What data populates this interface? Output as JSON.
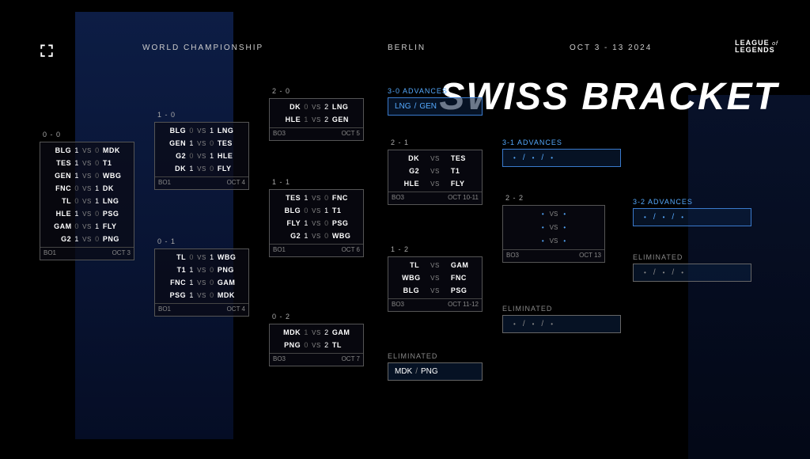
{
  "header": {
    "title": "WORLD CHAMPIONSHIP",
    "loc": "BERLIN",
    "date": "OCT 3 - 13 2024",
    "lol1": "LEAGUE",
    "lol2": "LEGENDS",
    "lolof": "of"
  },
  "main_title": "SWISS BRACKET",
  "c1": {
    "hdr": "0 - 0",
    "ft1": "BO1",
    "ft2": "OCT 3",
    "m": [
      {
        "t1": "BLG",
        "s1": "1",
        "t2": "MDK",
        "s2": "0"
      },
      {
        "t1": "TES",
        "s1": "1",
        "t2": "T1",
        "s2": "0"
      },
      {
        "t1": "GEN",
        "s1": "1",
        "t2": "WBG",
        "s2": "0"
      },
      {
        "t1": "FNC",
        "s1": "0",
        "t2": "DK",
        "s2": "1"
      },
      {
        "t1": "TL",
        "s1": "0",
        "t2": "LNG",
        "s2": "1"
      },
      {
        "t1": "HLE",
        "s1": "1",
        "t2": "PSG",
        "s2": "0"
      },
      {
        "t1": "GAM",
        "s1": "0",
        "t2": "FLY",
        "s2": "1"
      },
      {
        "t1": "G2",
        "s1": "1",
        "t2": "PNG",
        "s2": "0"
      }
    ]
  },
  "c2a": {
    "hdr": "1 - 0",
    "ft1": "BO1",
    "ft2": "OCT 4",
    "m": [
      {
        "t1": "BLG",
        "s1": "0",
        "t2": "LNG",
        "s2": "1"
      },
      {
        "t1": "GEN",
        "s1": "1",
        "t2": "TES",
        "s2": "0"
      },
      {
        "t1": "G2",
        "s1": "0",
        "t2": "HLE",
        "s2": "1"
      },
      {
        "t1": "DK",
        "s1": "1",
        "t2": "FLY",
        "s2": "0"
      }
    ]
  },
  "c2b": {
    "hdr": "0 - 1",
    "ft1": "BO1",
    "ft2": "OCT 4",
    "m": [
      {
        "t1": "TL",
        "s1": "0",
        "t2": "WBG",
        "s2": "1"
      },
      {
        "t1": "T1",
        "s1": "1",
        "t2": "PNG",
        "s2": "0"
      },
      {
        "t1": "FNC",
        "s1": "1",
        "t2": "GAM",
        "s2": "0"
      },
      {
        "t1": "PSG",
        "s1": "1",
        "t2": "MDK",
        "s2": "0"
      }
    ]
  },
  "c3a": {
    "hdr": "2 - 0",
    "ft1": "BO3",
    "ft2": "OCT 5",
    "m": [
      {
        "t1": "DK",
        "s1": "0",
        "t2": "LNG",
        "s2": "2"
      },
      {
        "t1": "HLE",
        "s1": "1",
        "t2": "GEN",
        "s2": "2"
      }
    ]
  },
  "c3b": {
    "hdr": "1 - 1",
    "ft1": "BO1",
    "ft2": "OCT 6",
    "m": [
      {
        "t1": "TES",
        "s1": "1",
        "t2": "FNC",
        "s2": "0"
      },
      {
        "t1": "BLG",
        "s1": "0",
        "t2": "T1",
        "s2": "1"
      },
      {
        "t1": "FLY",
        "s1": "1",
        "t2": "PSG",
        "s2": "0"
      },
      {
        "t1": "G2",
        "s1": "1",
        "t2": "WBG",
        "s2": "0"
      }
    ]
  },
  "c3c": {
    "hdr": "0 - 2",
    "ft1": "BO3",
    "ft2": "OCT 7",
    "m": [
      {
        "t1": "MDK",
        "s1": "1",
        "t2": "GAM",
        "s2": "2"
      },
      {
        "t1": "PNG",
        "s1": "0",
        "t2": "TL",
        "s2": "2"
      }
    ]
  },
  "adv30": {
    "label": "3-0 ADVANCES",
    "t1": "LNG",
    "t2": "GEN"
  },
  "c4a": {
    "hdr": "2 - 1",
    "ft1": "BO3",
    "ft2": "OCT 10-11",
    "m": [
      {
        "t1": "DK",
        "t2": "TES"
      },
      {
        "t1": "G2",
        "t2": "T1"
      },
      {
        "t1": "HLE",
        "t2": "FLY"
      }
    ]
  },
  "c4b": {
    "hdr": "1 - 2",
    "ft1": "BO3",
    "ft2": "OCT 11-12",
    "m": [
      {
        "t1": "TL",
        "t2": "GAM"
      },
      {
        "t1": "WBG",
        "t2": "FNC"
      },
      {
        "t1": "BLG",
        "t2": "PSG"
      }
    ]
  },
  "elim1": {
    "label": "ELIMINATED",
    "t1": "MDK",
    "t2": "PNG"
  },
  "adv31": {
    "label": "3-1 ADVANCES"
  },
  "c5": {
    "hdr": "2 - 2",
    "ft1": "BO3",
    "ft2": "OCT 13"
  },
  "elim2": {
    "label": "ELIMINATED"
  },
  "adv32": {
    "label": "3-2 ADVANCES"
  },
  "elim3": {
    "label": "ELIMINATED"
  },
  "vs_text": "VS",
  "colors": {
    "accent": "#5af",
    "border": "#555",
    "bg": "#000"
  }
}
